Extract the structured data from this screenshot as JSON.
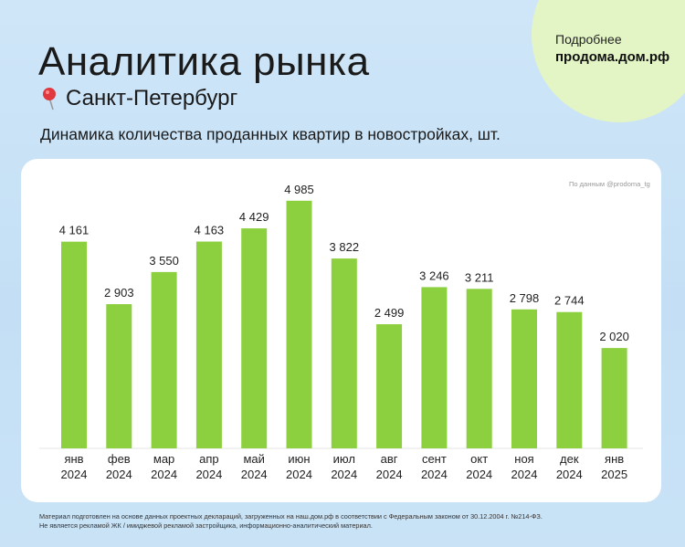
{
  "promo": {
    "line1": "Подробнее",
    "line2": "продома.дом.рф"
  },
  "header": {
    "title": "Аналитика рынка",
    "city": "Санкт-Петербург",
    "subtitle": "Динамика количества проданных квартир в новостройках, шт."
  },
  "source_note": "По данным @prodoma_tg",
  "icons": {
    "city": "map-pin-icon"
  },
  "colors": {
    "bar": "#8ccf3f",
    "background": "#cfe6f8",
    "promo": "#e3f5c5"
  },
  "footnote": {
    "line1": "Материал подготовлен на основе данных проектных деклараций, загруженных на наш.дом.рф в соответствии с Федеральным законом от 30.12.2004 г. №214-ФЗ.",
    "line2": "Не является рекламой ЖК / имиджевой рекламой застройщика, информационно-аналитический материал."
  },
  "chart_data": {
    "type": "bar",
    "categories": [
      [
        "янв",
        "2024"
      ],
      [
        "фев",
        "2024"
      ],
      [
        "мар",
        "2024"
      ],
      [
        "апр",
        "2024"
      ],
      [
        "май",
        "2024"
      ],
      [
        "июн",
        "2024"
      ],
      [
        "июл",
        "2024"
      ],
      [
        "авг",
        "2024"
      ],
      [
        "сент",
        "2024"
      ],
      [
        "окт",
        "2024"
      ],
      [
        "ноя",
        "2024"
      ],
      [
        "дек",
        "2024"
      ],
      [
        "янв",
        "2025"
      ]
    ],
    "values": [
      4161,
      2903,
      3550,
      4163,
      4429,
      4985,
      3822,
      2499,
      3246,
      3211,
      2798,
      2744,
      2020
    ],
    "value_labels": [
      "4 161",
      "2 903",
      "3 550",
      "4 163",
      "4 429",
      "4 985",
      "3 822",
      "2 499",
      "3 246",
      "3 211",
      "2 798",
      "2 744",
      "2 020"
    ],
    "ylim": [
      0,
      5500
    ],
    "grid": false,
    "legend": "none"
  }
}
